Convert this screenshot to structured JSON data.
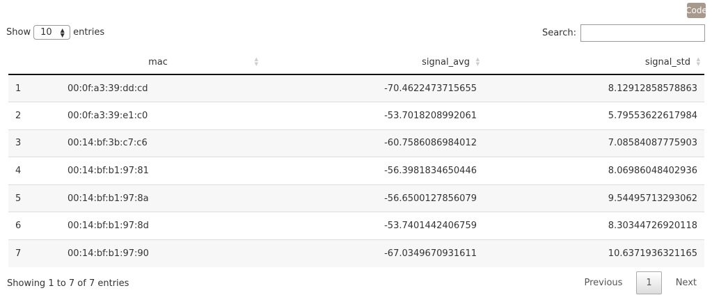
{
  "code_button": "Code",
  "length": {
    "show": "Show",
    "value": "10",
    "entries": "entries"
  },
  "search": {
    "label": "Search:",
    "value": ""
  },
  "columns": [
    "",
    "mac",
    "signal_avg",
    "signal_std"
  ],
  "rows": [
    [
      "1",
      "00:0f:a3:39:dd:cd",
      "-70.4622473715655",
      "8.12912858578863"
    ],
    [
      "2",
      "00:0f:a3:39:e1:c0",
      "-53.7018208992061",
      "5.79553622617984"
    ],
    [
      "3",
      "00:14:bf:3b:c7:c6",
      "-60.7586086984012",
      "7.08584087775903"
    ],
    [
      "4",
      "00:14:bf:b1:97:81",
      "-56.3981834650446",
      "8.06986048402936"
    ],
    [
      "5",
      "00:14:bf:b1:97:8a",
      "-56.6500127856079",
      "9.54495713293062"
    ],
    [
      "6",
      "00:14:bf:b1:97:8d",
      "-53.7401442406759",
      "8.30344726920118"
    ],
    [
      "7",
      "00:14:bf:b1:97:90",
      "-67.0349670931611",
      "10.6371936321165"
    ]
  ],
  "info": "Showing 1 to 7 of 7 entries",
  "pagination": {
    "previous": "Previous",
    "current": "1",
    "next": "Next"
  }
}
